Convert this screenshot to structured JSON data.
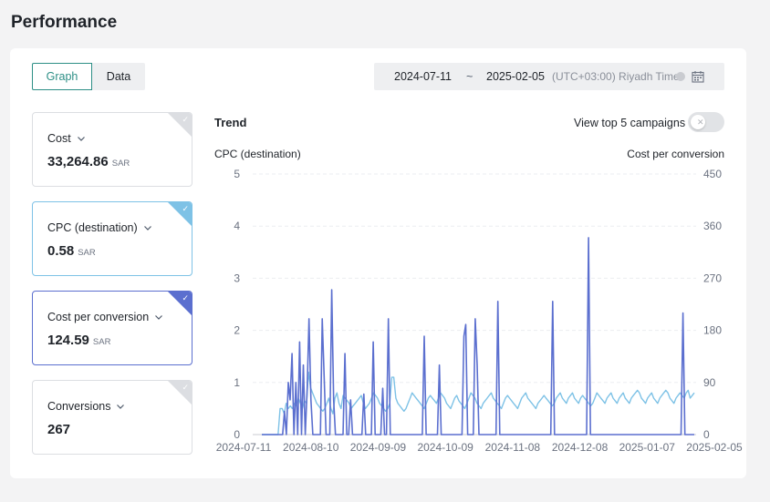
{
  "page": {
    "title": "Performance"
  },
  "view_toggle": {
    "graph_label": "Graph",
    "data_label": "Data"
  },
  "date_range": {
    "start": "2024-07-11",
    "separator": "~",
    "end": "2025-02-05",
    "timezone": "(UTC+03:00) Riyadh Time"
  },
  "metrics": [
    {
      "name": "Cost",
      "value": "33,264.86",
      "unit": "SAR",
      "selected": false
    },
    {
      "name": "CPC (destination)",
      "value": "0.58",
      "unit": "SAR",
      "selected": true,
      "color": "#7ec2e6"
    },
    {
      "name": "Cost per conversion",
      "value": "124.59",
      "unit": "SAR",
      "selected": true,
      "color": "#5b6fcf"
    },
    {
      "name": "Conversions",
      "value": "267",
      "unit": "",
      "selected": false
    }
  ],
  "trend": {
    "title": "Trend",
    "top5_label": "View top 5 campaigns",
    "top5_enabled": false
  },
  "chart_data": {
    "type": "line",
    "title": "Trend",
    "y_left": {
      "label": "CPC (destination)",
      "range": [
        0,
        5
      ],
      "ticks": [
        "0",
        "1",
        "2",
        "3",
        "4",
        "5"
      ]
    },
    "y_right": {
      "label": "Cost per conversion",
      "range": [
        0,
        450
      ],
      "ticks": [
        "0",
        "90",
        "180",
        "270",
        "360",
        "450"
      ]
    },
    "x_ticks": [
      "2024-07-11",
      "2024-08-10",
      "2024-09-09",
      "2024-10-09",
      "2024-11-08",
      "2024-12-08",
      "2025-01-07",
      "2025-02-05"
    ],
    "grid": true,
    "series": [
      {
        "name": "CPC (destination)",
        "axis": "left",
        "color": "#7ec2e6",
        "values": [
          0,
          0,
          0,
          0,
          0,
          0,
          0,
          0,
          0,
          0.5,
          0.5,
          0.4,
          0.6,
          0.5,
          0.55,
          0.5,
          0.6,
          0.55,
          0.7,
          0.6,
          0.5,
          0.65,
          0.6,
          1.2,
          0.9,
          0.8,
          0.7,
          0.6,
          0.55,
          0.5,
          0.45,
          0.5,
          0.6,
          0.7,
          0.5,
          0.4,
          0.7,
          0.8,
          0.6,
          0.5,
          0.75,
          0.7,
          0.65,
          0.6,
          0.5,
          0.55,
          0.6,
          0.65,
          0.7,
          0.75,
          0.6,
          0.5,
          0.55,
          0.6,
          0.7,
          0.8,
          0.75,
          0.7,
          0.6,
          0.55,
          0.5,
          0.45,
          0.5,
          0.6,
          1.1,
          1.1,
          0.7,
          0.6,
          0.55,
          0.5,
          0.45,
          0.5,
          0.6,
          0.7,
          0.8,
          0.75,
          0.7,
          0.65,
          0.6,
          0.55,
          0.5,
          0.6,
          0.7,
          0.75,
          0.7,
          0.65,
          0.6,
          0.7,
          0.8,
          0.75,
          0.7,
          0.6,
          0.55,
          0.5,
          0.6,
          0.7,
          0.75,
          0.65,
          0.6,
          0.55,
          0.5,
          0.6,
          0.7,
          0.8,
          0.75,
          0.7,
          0.6,
          0.55,
          0.5,
          0.6,
          0.65,
          0.7,
          0.75,
          0.8,
          0.7,
          0.65,
          0.6,
          0.55,
          0.5,
          0.6,
          0.7,
          0.75,
          0.7,
          0.65,
          0.6,
          0.55,
          0.5,
          0.6,
          0.7,
          0.75,
          0.8,
          0.7,
          0.65,
          0.6,
          0.55,
          0.5,
          0.6,
          0.65,
          0.7,
          0.75,
          0.7,
          0.65,
          0.6,
          0.55,
          0.6,
          0.7,
          0.75,
          0.8,
          0.7,
          0.65,
          0.6,
          0.7,
          0.75,
          0.8,
          0.7,
          0.65,
          0.6,
          0.7,
          0.75,
          0.7,
          0.65,
          0.6,
          0.55,
          0.6,
          0.7,
          0.8,
          0.75,
          0.7,
          0.65,
          0.6,
          0.7,
          0.75,
          0.8,
          0.7,
          0.65,
          0.6,
          0.7,
          0.75,
          0.8,
          0.7,
          0.65,
          0.6,
          0.7,
          0.75,
          0.8,
          0.85,
          0.8,
          0.7,
          0.65,
          0.6,
          0.7,
          0.75,
          0.8,
          0.7,
          0.65,
          0.6,
          0.7,
          0.75,
          0.8,
          0.85,
          0.8,
          0.7,
          0.65,
          0.6,
          0.7,
          0.75,
          0.8,
          0.75,
          0.7,
          0.8,
          0.85,
          0.7,
          0.75,
          0.8
        ]
      },
      {
        "name": "Cost per conversion",
        "axis": "right",
        "color": "#5b6fcf",
        "values": [
          0,
          0,
          0,
          0,
          0,
          0,
          0,
          0,
          0,
          0,
          0,
          0,
          40,
          0,
          90,
          60,
          140,
          0,
          90,
          0,
          160,
          0,
          120,
          0,
          80,
          200,
          60,
          0,
          0,
          0,
          0,
          0,
          200,
          100,
          0,
          0,
          0,
          250,
          60,
          0,
          0,
          0,
          0,
          0,
          140,
          0,
          0,
          60,
          0,
          0,
          0,
          0,
          0,
          0,
          70,
          0,
          0,
          0,
          0,
          160,
          0,
          0,
          0,
          0,
          80,
          0,
          0,
          200,
          0,
          0,
          0,
          0,
          0,
          0,
          0,
          0,
          0,
          0,
          0,
          0,
          0,
          0,
          0,
          0,
          0,
          0,
          170,
          0,
          0,
          0,
          0,
          0,
          0,
          0,
          120,
          0,
          0,
          0,
          0,
          0,
          0,
          0,
          0,
          0,
          0,
          0,
          0,
          170,
          190,
          0,
          0,
          0,
          0,
          200,
          120,
          0,
          0,
          0,
          0,
          0,
          0,
          0,
          0,
          0,
          0,
          230,
          0,
          0,
          0,
          0,
          0,
          0,
          0,
          0,
          0,
          0,
          0,
          0,
          0,
          0,
          0,
          0,
          0,
          0,
          0,
          0,
          0,
          0,
          0,
          0,
          0,
          0,
          0,
          0,
          230,
          0,
          0,
          0,
          0,
          0,
          0,
          0,
          0,
          0,
          0,
          0,
          0,
          0,
          0,
          0,
          0,
          0,
          0,
          340,
          0,
          0,
          0,
          0,
          0,
          0,
          0,
          0,
          0,
          0,
          0,
          0,
          0,
          0,
          0,
          0,
          0,
          0,
          0,
          0,
          0,
          0,
          0,
          0,
          0,
          0,
          0,
          0,
          0,
          0,
          0,
          0,
          0,
          0,
          0,
          0,
          0,
          0,
          0,
          0,
          0,
          0,
          0,
          0,
          0,
          0,
          0,
          0,
          0,
          210,
          0,
          0,
          0,
          0,
          0,
          0
        ]
      }
    ]
  }
}
